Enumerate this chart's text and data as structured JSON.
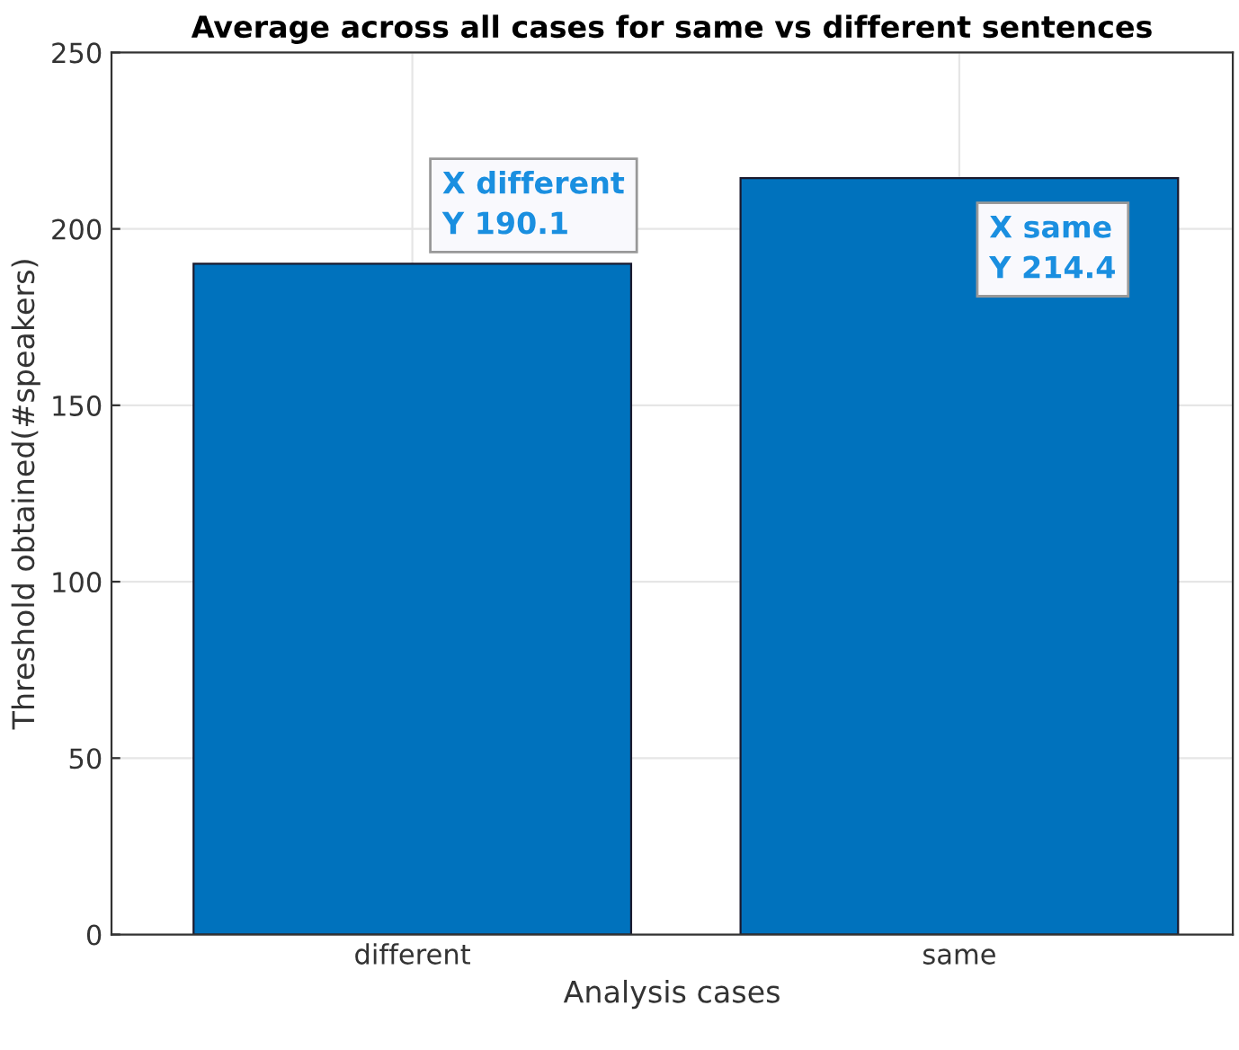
{
  "chart_data": {
    "type": "bar",
    "title": "Average across all cases for same vs different sentences",
    "xlabel": "Analysis cases",
    "ylabel": "Threshold obtained(#speakers)",
    "categories": [
      "different",
      "same"
    ],
    "values": [
      190.1,
      214.4
    ],
    "color": "#0072bd",
    "ylim": [
      0,
      250
    ],
    "yticks": [
      0,
      50,
      100,
      150,
      200,
      250
    ],
    "grid": true,
    "annotations": [
      {
        "text": "X different\nY 190.1",
        "x": "different",
        "y": 190.1
      },
      {
        "text": "X same\nY 214.4",
        "x": "same",
        "y": 214.4
      }
    ]
  }
}
